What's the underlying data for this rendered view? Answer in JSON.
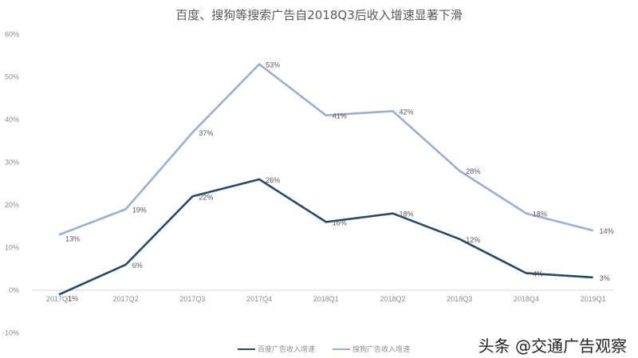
{
  "title": "百度、搜狗等搜索广告自2018Q3后收入增速显著下滑",
  "watermark": "头条 @交通广告观察",
  "legend": [
    {
      "label": "百度广告收入增速",
      "color": "#264a66"
    },
    {
      "label": "搜狗广告收入增速",
      "color": "#9aaed0"
    }
  ],
  "chart_data": {
    "type": "line",
    "title": "百度、搜狗等搜索广告自2018Q3后收入增速显著下滑",
    "xlabel": "",
    "ylabel": "",
    "categories": [
      "2017Q1",
      "2017Q2",
      "2017Q3",
      "2017Q4",
      "2018Q1",
      "2018Q2",
      "2018Q3",
      "2018Q4",
      "2019Q1"
    ],
    "series": [
      {
        "name": "百度广告收入增速",
        "color": "#264a66",
        "values": [
          -1,
          6,
          22,
          26,
          16,
          18,
          12,
          4,
          3
        ]
      },
      {
        "name": "搜狗广告收入增速",
        "color": "#9aaed0",
        "values": [
          13,
          19,
          37,
          53,
          41,
          42,
          28,
          18,
          14
        ]
      }
    ],
    "ylim": [
      -10,
      60
    ],
    "yticks": [
      "-10%",
      "0%",
      "10%",
      "20%",
      "30%",
      "40%",
      "50%",
      "60%"
    ],
    "grid": false,
    "legend_position": "bottom",
    "data_label_suffix": "%"
  }
}
